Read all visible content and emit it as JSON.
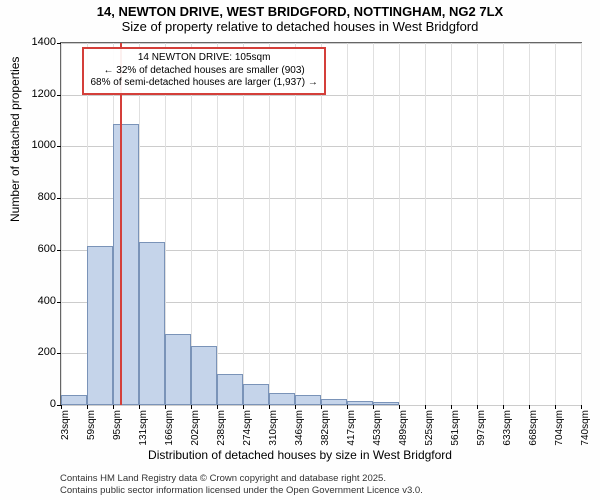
{
  "chart": {
    "type": "histogram",
    "title_main": "14, NEWTON DRIVE, WEST BRIDGFORD, NOTTINGHAM, NG2 7LX",
    "title_sub": "Size of property relative to detached houses in West Bridgford",
    "title_fontsize": 13,
    "ylabel": "Number of detached properties",
    "xlabel": "Distribution of detached houses by size in West Bridgford",
    "label_fontsize": 12,
    "tick_fontsize": 11,
    "background_color": "#ffffff",
    "grid_color": "#cccccc",
    "bar_fill": "#c5d4ea",
    "bar_border": "#7a93b8",
    "marker_color": "#d43f3a",
    "annotation_border": "#d43f3a",
    "ylim": [
      0,
      1400
    ],
    "yticks": [
      0,
      200,
      400,
      600,
      800,
      1000,
      1200,
      1400
    ],
    "x_tick_labels": [
      "23sqm",
      "59sqm",
      "95sqm",
      "131sqm",
      "166sqm",
      "202sqm",
      "238sqm",
      "274sqm",
      "310sqm",
      "346sqm",
      "382sqm",
      "417sqm",
      "453sqm",
      "489sqm",
      "525sqm",
      "561sqm",
      "597sqm",
      "633sqm",
      "668sqm",
      "704sqm",
      "740sqm"
    ],
    "bars": [
      40,
      615,
      1085,
      630,
      275,
      230,
      120,
      80,
      45,
      40,
      25,
      15,
      10,
      0,
      0,
      0,
      0,
      0,
      0,
      0
    ],
    "marker_x_sqm": 105,
    "annotation": {
      "line1": "14 NEWTON DRIVE: 105sqm",
      "line2": "← 32% of detached houses are smaller (903)",
      "line3": "68% of semi-detached houses are larger (1,937) →"
    },
    "footer_line1": "Contains HM Land Registry data © Crown copyright and database right 2025.",
    "footer_line2": "Contains public sector information licensed under the Open Government Licence v3.0."
  }
}
